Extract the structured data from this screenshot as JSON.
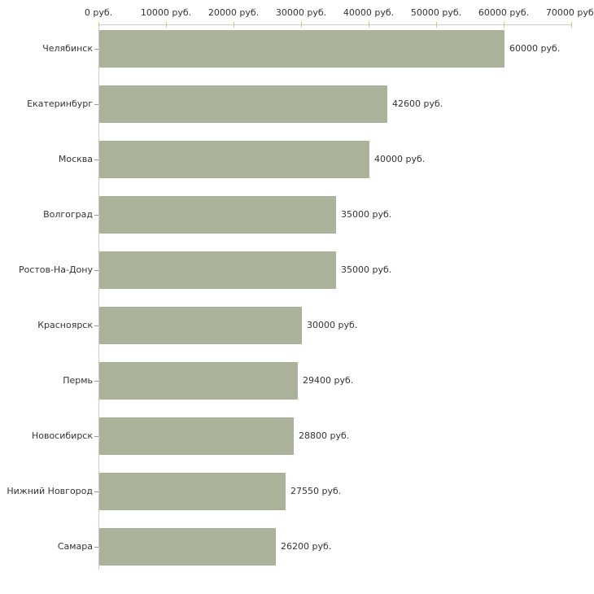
{
  "chart_data": {
    "type": "bar",
    "orientation": "horizontal",
    "title": "",
    "xlabel": "",
    "ylabel": "",
    "axis_position": "top",
    "grid": false,
    "legend": "none",
    "xlim": [
      0,
      70000
    ],
    "x_tick_step": 10000,
    "x_ticks": [
      0,
      10000,
      20000,
      30000,
      40000,
      50000,
      60000,
      70000
    ],
    "x_tick_labels": [
      "0 руб.",
      "10000 руб.",
      "20000 руб.",
      "30000 руб.",
      "40000 руб.",
      "50000 руб.",
      "60000 руб.",
      "70000 руб."
    ],
    "categories": [
      "Челябинск",
      "Екатеринбург",
      "Москва",
      "Волгоград",
      "Ростов-На-Дону",
      "Красноярск",
      "Пермь",
      "Новосибирск",
      "Нижний Новгород",
      "Самара"
    ],
    "values": [
      60000,
      42600,
      40000,
      35000,
      35000,
      30000,
      29400,
      28800,
      27550,
      26200
    ],
    "value_labels": [
      "60000 руб.",
      "42600 руб.",
      "40000 руб.",
      "35000 руб.",
      "35000 руб.",
      "30000 руб.",
      "29400 руб.",
      "28800 руб.",
      "27550 руб.",
      "26200 руб."
    ],
    "colors": {
      "bar": "#abb29a",
      "axis_line": "#cccccc",
      "x_tick": "#c6c68f",
      "category_tick": "#999999",
      "text": "#333333",
      "background": "#ffffff"
    }
  }
}
